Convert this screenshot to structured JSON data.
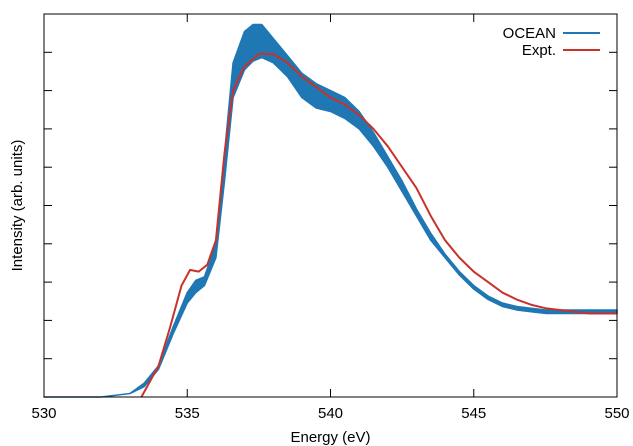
{
  "chart_data": {
    "type": "line",
    "title": "",
    "xlabel": "Energy (eV)",
    "ylabel": "Intensity (arb. units)",
    "xlim": [
      530,
      550
    ],
    "ylim": [
      0,
      1.1
    ],
    "x_ticks": [
      530,
      535,
      540,
      545,
      550
    ],
    "x_tick_labels": [
      "530",
      "535",
      "540",
      "545",
      "550"
    ],
    "y_tick_count": 10,
    "y_tick_labels_shown": false,
    "grid": false,
    "legend_position": "top-right",
    "series": [
      {
        "name": "OCEAN",
        "color": "#1f77b4",
        "style": "band",
        "x": [
          530,
          532,
          533,
          533.5,
          534,
          534.5,
          535,
          535.3,
          535.6,
          536,
          536.3,
          536.6,
          537,
          537.3,
          537.6,
          538,
          538.5,
          539,
          539.5,
          540,
          540.5,
          541,
          541.5,
          542,
          542.5,
          543,
          543.5,
          544,
          544.5,
          545,
          545.5,
          546,
          546.5,
          547,
          547.5,
          548,
          548.5,
          549,
          549.5,
          550
        ],
        "lower": [
          0.0,
          0.0,
          0.01,
          0.03,
          0.08,
          0.18,
          0.27,
          0.3,
          0.32,
          0.4,
          0.62,
          0.86,
          0.94,
          0.965,
          0.975,
          0.96,
          0.92,
          0.86,
          0.83,
          0.82,
          0.8,
          0.77,
          0.72,
          0.66,
          0.59,
          0.52,
          0.45,
          0.4,
          0.35,
          0.31,
          0.28,
          0.26,
          0.25,
          0.245,
          0.24,
          0.24,
          0.24,
          0.24,
          0.24,
          0.24
        ],
        "upper": [
          0.0,
          0.0,
          0.01,
          0.04,
          0.09,
          0.2,
          0.3,
          0.335,
          0.345,
          0.44,
          0.7,
          0.96,
          1.05,
          1.07,
          1.07,
          1.03,
          0.98,
          0.93,
          0.9,
          0.88,
          0.86,
          0.82,
          0.76,
          0.69,
          0.62,
          0.54,
          0.47,
          0.41,
          0.36,
          0.32,
          0.29,
          0.27,
          0.26,
          0.255,
          0.25,
          0.25,
          0.25,
          0.25,
          0.25,
          0.25
        ]
      },
      {
        "name": "Expt.",
        "color": "#c8322a",
        "style": "line",
        "x": [
          533.4,
          534,
          534.4,
          534.8,
          535.1,
          535.4,
          535.7,
          536,
          536.3,
          536.6,
          537,
          537.5,
          538,
          538.5,
          539,
          539.5,
          540,
          540.5,
          541,
          541.5,
          542,
          542.5,
          543,
          543.5,
          544,
          544.5,
          545,
          545.5,
          546,
          546.5,
          547,
          547.5,
          548,
          548.5,
          549,
          549.5,
          550
        ],
        "y": [
          0.0,
          0.09,
          0.2,
          0.32,
          0.365,
          0.36,
          0.38,
          0.45,
          0.7,
          0.88,
          0.95,
          0.985,
          0.985,
          0.96,
          0.92,
          0.89,
          0.86,
          0.84,
          0.81,
          0.77,
          0.72,
          0.66,
          0.6,
          0.52,
          0.45,
          0.4,
          0.36,
          0.33,
          0.3,
          0.28,
          0.265,
          0.255,
          0.25,
          0.245,
          0.24,
          0.24,
          0.24
        ]
      }
    ]
  }
}
